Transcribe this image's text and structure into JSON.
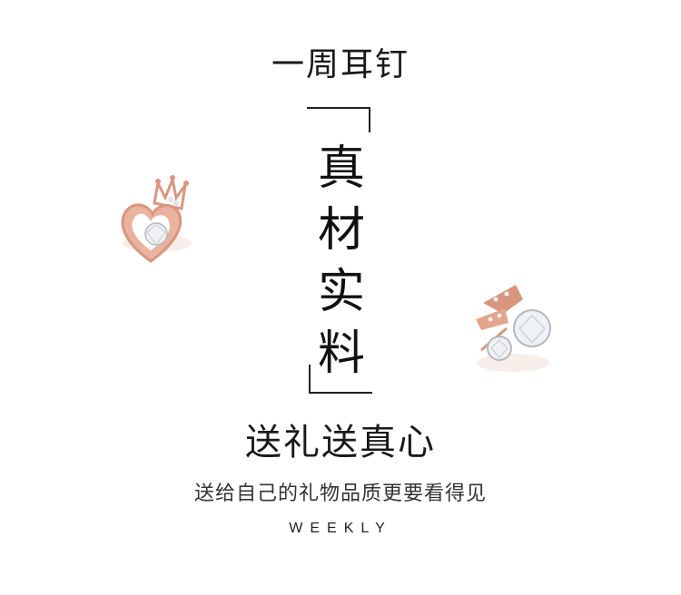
{
  "header": {
    "title": "一周耳钉"
  },
  "feature": {
    "chars": [
      "真",
      "材",
      "实",
      "料"
    ]
  },
  "slogan": {
    "main": "送礼送真心",
    "sub": "送给自己的礼物品质更要看得见"
  },
  "brand": {
    "label": "WEEKLY"
  },
  "decor": {
    "left_earring": "heart-crown-earring-icon",
    "right_earring": "arrow-crystal-earring-icon",
    "metal_color": "#d9967e",
    "stone_color": "#eef1f5"
  }
}
